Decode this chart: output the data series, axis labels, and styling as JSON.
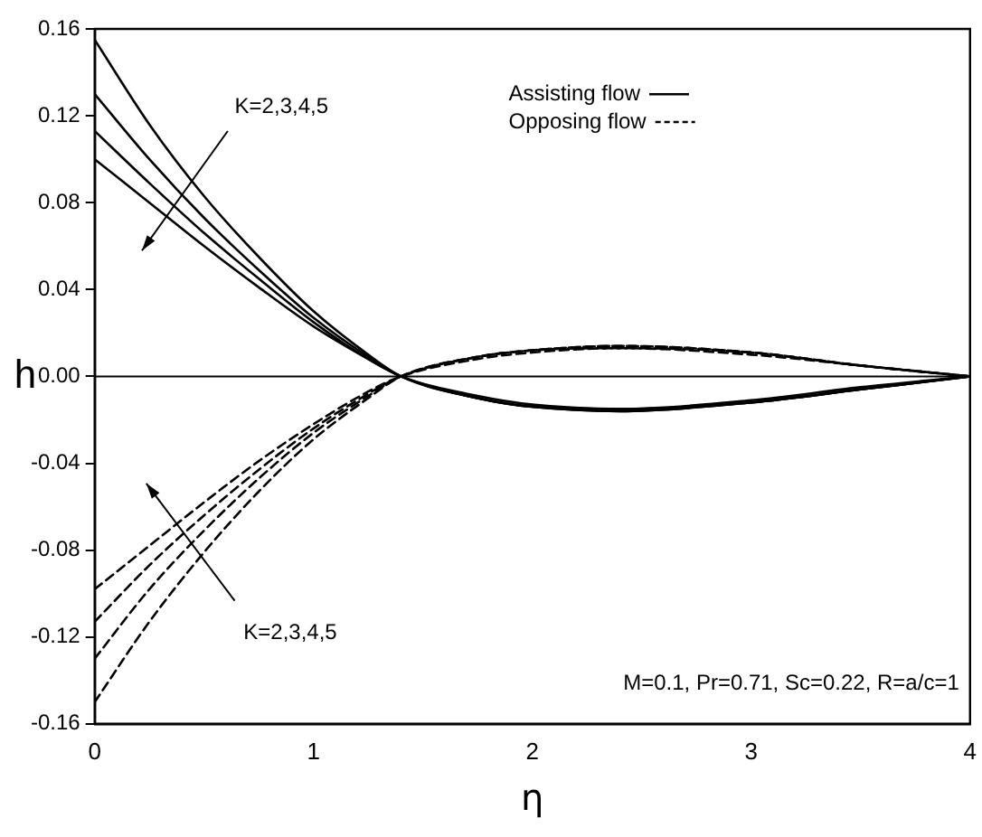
{
  "chart_data": {
    "type": "line",
    "xlabel": "η",
    "ylabel": "h",
    "xlim": [
      0,
      4
    ],
    "ylim": [
      -0.16,
      0.16
    ],
    "xticks": [
      0,
      1,
      2,
      3,
      4
    ],
    "yticks": [
      {
        "value": -0.16,
        "label": "-0.16"
      },
      {
        "value": -0.12,
        "label": "-0.12"
      },
      {
        "value": -0.08,
        "label": "-0.08"
      },
      {
        "value": -0.04,
        "label": "-0.04"
      },
      {
        "value": 0,
        "label": "0.00"
      },
      {
        "value": 0.04,
        "label": "0.04"
      },
      {
        "value": 0.08,
        "label": "0.08"
      },
      {
        "value": 0.12,
        "label": "0.12"
      },
      {
        "value": 0.16,
        "label": "0.16"
      }
    ],
    "grid": false,
    "legend": false,
    "marker": "none",
    "x": [
      0,
      0.25,
      0.5,
      0.75,
      1,
      1.25,
      1.4,
      1.75,
      2,
      2.4,
      3,
      3.5,
      4
    ],
    "series": [
      {
        "color": "#000000",
        "line_style": "solid",
        "values": [
          0.155,
          0.116,
          0.083,
          0.055,
          0.03,
          0.01,
          0,
          -0.01,
          -0.014,
          -0.016,
          -0.012,
          -0.006,
          0
        ]
      },
      {
        "color": "#000000",
        "line_style": "solid",
        "values": [
          0.13,
          0.1,
          0.073,
          0.049,
          0.027,
          0.009,
          0,
          -0.01,
          -0.014,
          -0.016,
          -0.012,
          -0.006,
          0
        ]
      },
      {
        "color": "#000000",
        "line_style": "solid",
        "values": [
          0.113,
          0.089,
          0.066,
          0.045,
          0.025,
          0.008,
          0,
          -0.01,
          -0.014,
          -0.015,
          -0.012,
          -0.006,
          0
        ]
      },
      {
        "color": "#000000",
        "line_style": "solid",
        "values": [
          0.1,
          0.08,
          0.06,
          0.041,
          0.023,
          0.008,
          0,
          -0.009,
          -0.013,
          -0.015,
          -0.011,
          -0.005,
          0
        ]
      },
      {
        "color": "#000000",
        "line_style": "dashed",
        "values": [
          -0.15,
          -0.113,
          -0.081,
          -0.053,
          -0.029,
          -0.01,
          0,
          0.009,
          0.012,
          0.014,
          0.011,
          0.005,
          0
        ]
      },
      {
        "color": "#000000",
        "line_style": "dashed",
        "values": [
          -0.13,
          -0.098,
          -0.071,
          -0.047,
          -0.026,
          -0.009,
          0,
          0.009,
          0.012,
          0.014,
          0.011,
          0.005,
          0
        ]
      },
      {
        "color": "#000000",
        "line_style": "dashed",
        "values": [
          -0.113,
          -0.087,
          -0.064,
          -0.043,
          -0.024,
          -0.008,
          0,
          0.009,
          0.012,
          0.013,
          0.011,
          0.005,
          0
        ]
      },
      {
        "color": "#000000",
        "line_style": "dashed",
        "values": [
          -0.098,
          -0.078,
          -0.058,
          -0.039,
          -0.022,
          -0.007,
          0,
          0.008,
          0.011,
          0.013,
          0.01,
          0.005,
          0
        ]
      }
    ],
    "ref_lines": [
      {
        "axis": "y",
        "value": 0,
        "color": "#000000",
        "line_style": "solid"
      }
    ],
    "annotations": [
      "K=2,3,4,5",
      "K=2,3,4,5",
      "Assisting flow",
      "Opposing flow",
      "M=0.1, Pr=0.71, Sc=0.22, R=a/c=1"
    ]
  }
}
